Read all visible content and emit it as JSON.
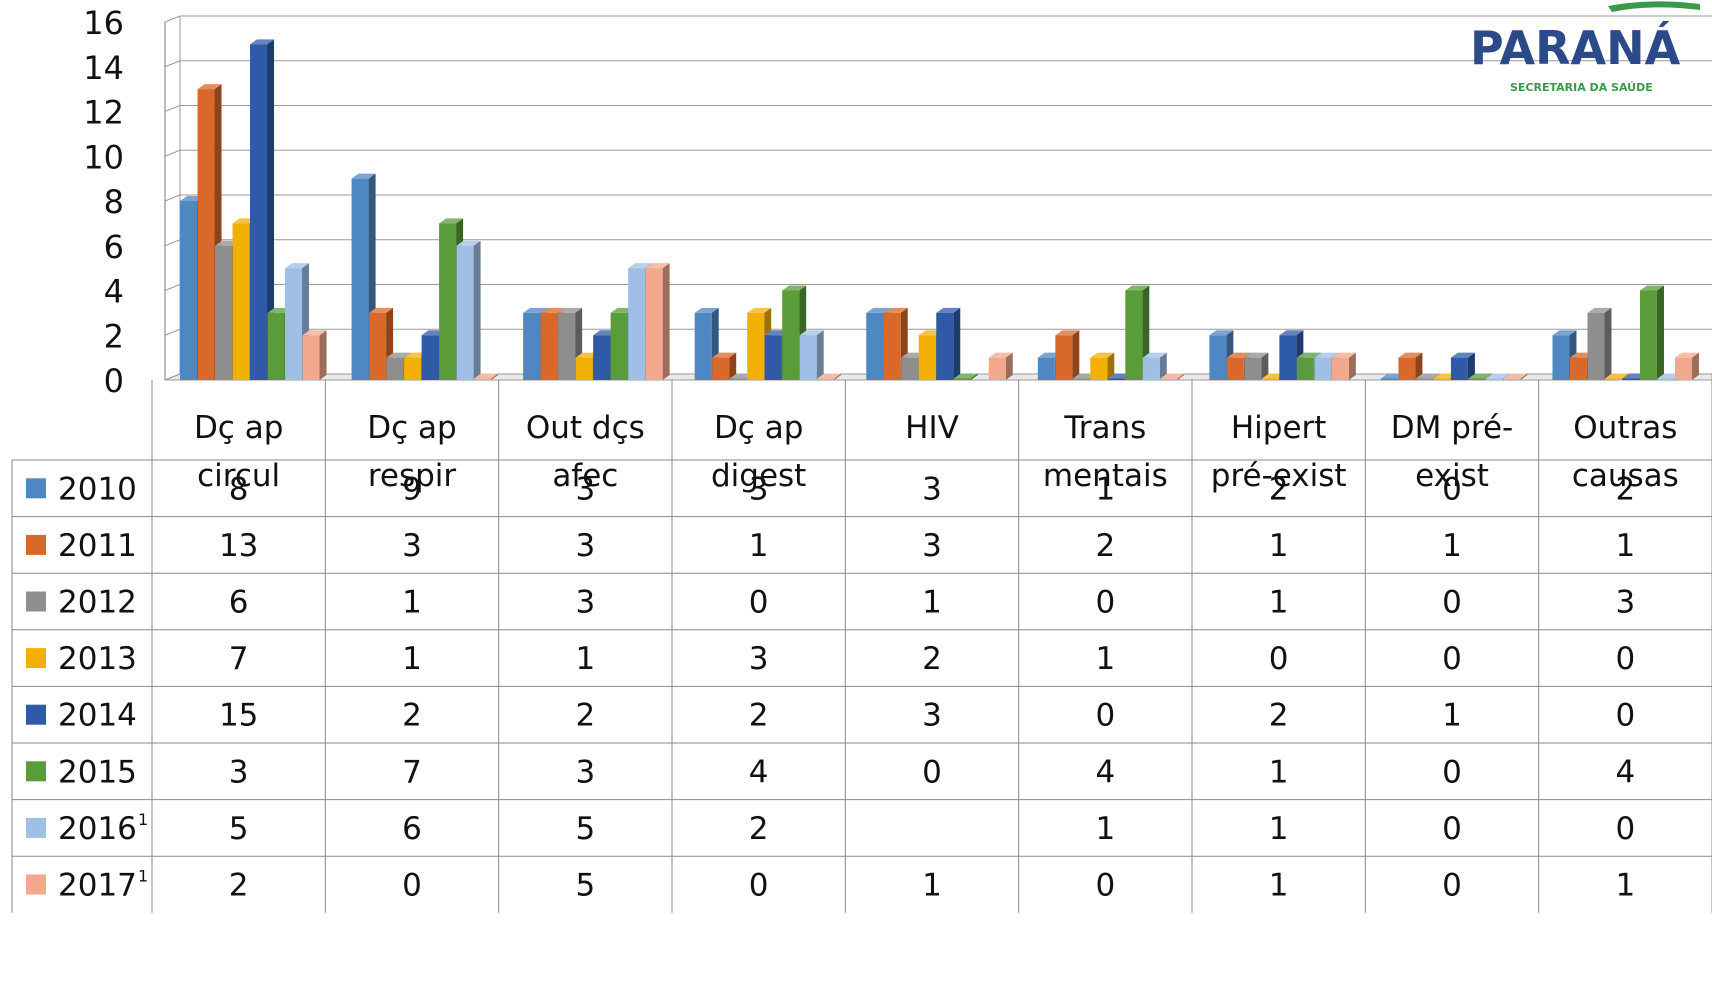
{
  "logo": {
    "word": "PARANÁ",
    "subtitle": "SECRETARIA DA SAÚDE"
  },
  "chart_data": {
    "type": "bar",
    "style": "3d-clustered-column-with-data-table",
    "ylim": [
      0,
      16
    ],
    "yticks": [
      0,
      2,
      4,
      6,
      8,
      10,
      12,
      14,
      16
    ],
    "grid": true,
    "categories": [
      [
        "Dç ap",
        "circul"
      ],
      [
        "Dç ap",
        "respir"
      ],
      [
        "Out dçs",
        "afec"
      ],
      [
        "Dç ap",
        "digest"
      ],
      [
        "HIV"
      ],
      [
        "Trans",
        "mentais"
      ],
      [
        "Hipert",
        "pré-exist"
      ],
      [
        "DM pré-",
        "exist"
      ],
      [
        "Outras",
        "causas"
      ]
    ],
    "series": [
      {
        "name": "2010",
        "sup": "",
        "color": "#4f87c2",
        "values": [
          8,
          9,
          3,
          3,
          3,
          1,
          2,
          0,
          2
        ]
      },
      {
        "name": "2011",
        "sup": "",
        "color": "#d8692a",
        "values": [
          13,
          3,
          3,
          1,
          3,
          2,
          1,
          1,
          1
        ]
      },
      {
        "name": "2012",
        "sup": "",
        "color": "#8e8e8e",
        "values": [
          6,
          1,
          3,
          0,
          1,
          0,
          1,
          0,
          3
        ]
      },
      {
        "name": "2013",
        "sup": "",
        "color": "#f2b005",
        "values": [
          7,
          1,
          1,
          3,
          2,
          1,
          0,
          0,
          0
        ]
      },
      {
        "name": "2014",
        "sup": "",
        "color": "#2e5aa8",
        "values": [
          15,
          2,
          2,
          2,
          3,
          0,
          2,
          1,
          0
        ]
      },
      {
        "name": "2015",
        "sup": "",
        "color": "#5a9b3a",
        "values": [
          3,
          7,
          3,
          4,
          0,
          4,
          1,
          0,
          4
        ]
      },
      {
        "name": "2016",
        "sup": "1",
        "color": "#9fbfe6",
        "values": [
          5,
          6,
          5,
          2,
          null,
          1,
          1,
          0,
          0
        ]
      },
      {
        "name": "2017",
        "sup": "1",
        "color": "#f2a88c",
        "values": [
          2,
          0,
          5,
          0,
          1,
          0,
          1,
          0,
          1
        ]
      }
    ]
  }
}
